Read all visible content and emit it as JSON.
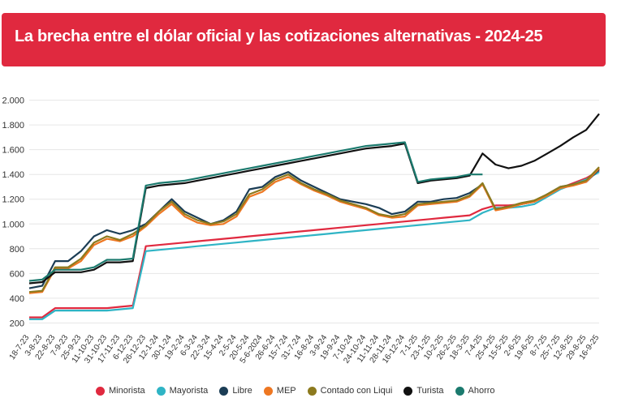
{
  "header": {
    "title": "La brecha entre el dólar oficial y las cotizaciones alternativas - 2024-25"
  },
  "colors": {
    "header_bg": "#e0293f",
    "grid": "#e6e6e6",
    "axis_text": "#333333"
  },
  "chart_data": {
    "type": "line",
    "y_ticks": [
      200,
      400,
      600,
      800,
      1000,
      1200,
      1400,
      1600,
      1800,
      2000
    ],
    "y_tick_labels": [
      "200",
      "400",
      "600",
      "800",
      "1.000",
      "1.200",
      "1.400",
      "1.600",
      "1.800",
      "2.000"
    ],
    "ylim": [
      150,
      2050
    ],
    "grid": true,
    "legend_position": "bottom",
    "categories": [
      "18-7-23",
      "3-8-23",
      "22-8-23",
      "7-9-23",
      "25-9-23",
      "11-10-23",
      "31-10-23",
      "17-11-23",
      "6-12-23",
      "26-12-23",
      "12-1-24",
      "30-1-24",
      "19-2-24",
      "6-3-24",
      "22-3-24",
      "15-4-24",
      "2-5-24",
      "20-5-24",
      "5-6-2024",
      "26-6-24",
      "15-7-24",
      "31-7-24",
      "16-8-24",
      "3-9-24",
      "19-9-24",
      "7-10-24",
      "24-10-24",
      "11-11-24",
      "28-11-24",
      "16-12-24",
      "7-1-25",
      "23-1-25",
      "10-2-25",
      "26-2-25",
      "18-3-25",
      "7-4-25",
      "25-4-25",
      "15-5-25",
      "2-6-25",
      "19-6-25",
      "8-7-25",
      "25-7-25",
      "12-8-25",
      "29-8-25",
      "16-9-25"
    ],
    "series": [
      {
        "name": "Minorista",
        "color": "#e0293f",
        "values": [
          245,
          245,
          320,
          320,
          320,
          320,
          320,
          330,
          340,
          820,
          830,
          840,
          850,
          860,
          870,
          880,
          890,
          900,
          910,
          920,
          930,
          940,
          950,
          960,
          970,
          980,
          990,
          1000,
          1010,
          1020,
          1030,
          1040,
          1050,
          1060,
          1070,
          1120,
          1150,
          1150,
          1160,
          1180,
          1240,
          1290,
          1330,
          1370,
          1430
        ]
      },
      {
        "name": "Mayorista",
        "color": "#2fb4c5",
        "values": [
          230,
          230,
          300,
          300,
          300,
          300,
          300,
          310,
          320,
          780,
          790,
          800,
          810,
          820,
          830,
          840,
          850,
          860,
          870,
          880,
          890,
          900,
          910,
          920,
          930,
          940,
          950,
          960,
          970,
          980,
          990,
          1000,
          1010,
          1020,
          1030,
          1090,
          1130,
          1130,
          1140,
          1160,
          1220,
          1280,
          1320,
          1360,
          1420
        ]
      },
      {
        "name": "Libre",
        "color": "#1b3d55",
        "values": [
          480,
          500,
          700,
          700,
          780,
          900,
          950,
          920,
          950,
          1000,
          1100,
          1200,
          1100,
          1050,
          1000,
          1030,
          1100,
          1280,
          1300,
          1380,
          1420,
          1350,
          1300,
          1250,
          1200,
          1180,
          1160,
          1130,
          1080,
          1100,
          1180,
          1180,
          1200,
          1210,
          1250,
          1320,
          1120,
          1140,
          1160,
          1180,
          1240,
          1300,
          1320,
          1340,
          1440
        ]
      },
      {
        "name": "MEP",
        "color": "#ee7722",
        "values": [
          440,
          450,
          640,
          640,
          700,
          830,
          880,
          860,
          900,
          980,
          1080,
          1160,
          1060,
          1010,
          990,
          1000,
          1060,
          1220,
          1260,
          1340,
          1380,
          1320,
          1270,
          1230,
          1180,
          1150,
          1120,
          1070,
          1050,
          1060,
          1150,
          1160,
          1170,
          1180,
          1220,
          1320,
          1110,
          1130,
          1160,
          1180,
          1230,
          1290,
          1310,
          1340,
          1450
        ]
      },
      {
        "name": "Contado con Liqui",
        "color": "#8c7a1e",
        "values": [
          450,
          460,
          650,
          650,
          720,
          850,
          900,
          870,
          920,
          990,
          1100,
          1180,
          1080,
          1030,
          1000,
          1020,
          1080,
          1240,
          1280,
          1360,
          1400,
          1330,
          1280,
          1240,
          1190,
          1160,
          1130,
          1080,
          1060,
          1080,
          1160,
          1170,
          1180,
          1190,
          1230,
          1330,
          1120,
          1140,
          1170,
          1190,
          1240,
          1300,
          1320,
          1350,
          1460
        ]
      },
      {
        "name": "Turista",
        "color": "#111111",
        "values": [
          520,
          530,
          610,
          610,
          610,
          630,
          690,
          690,
          700,
          1290,
          1310,
          1320,
          1330,
          1350,
          1370,
          1390,
          1410,
          1430,
          1450,
          1470,
          1490,
          1510,
          1530,
          1550,
          1570,
          1590,
          1610,
          1620,
          1630,
          1650,
          1330,
          1350,
          1360,
          1370,
          1390,
          1570,
          1480,
          1450,
          1470,
          1510,
          1570,
          1630,
          1700,
          1760,
          1890
        ]
      },
      {
        "name": "Ahorro",
        "color": "#1b7a6e",
        "values": [
          540,
          550,
          630,
          630,
          630,
          650,
          710,
          710,
          720,
          1310,
          1330,
          1340,
          1350,
          1370,
          1390,
          1410,
          1430,
          1450,
          1470,
          1490,
          1510,
          1530,
          1550,
          1570,
          1590,
          1610,
          1630,
          1640,
          1650,
          1660,
          1340,
          1360,
          1370,
          1380,
          1400,
          1400,
          null,
          null,
          null,
          null,
          null,
          null,
          null,
          null,
          null
        ]
      }
    ]
  }
}
